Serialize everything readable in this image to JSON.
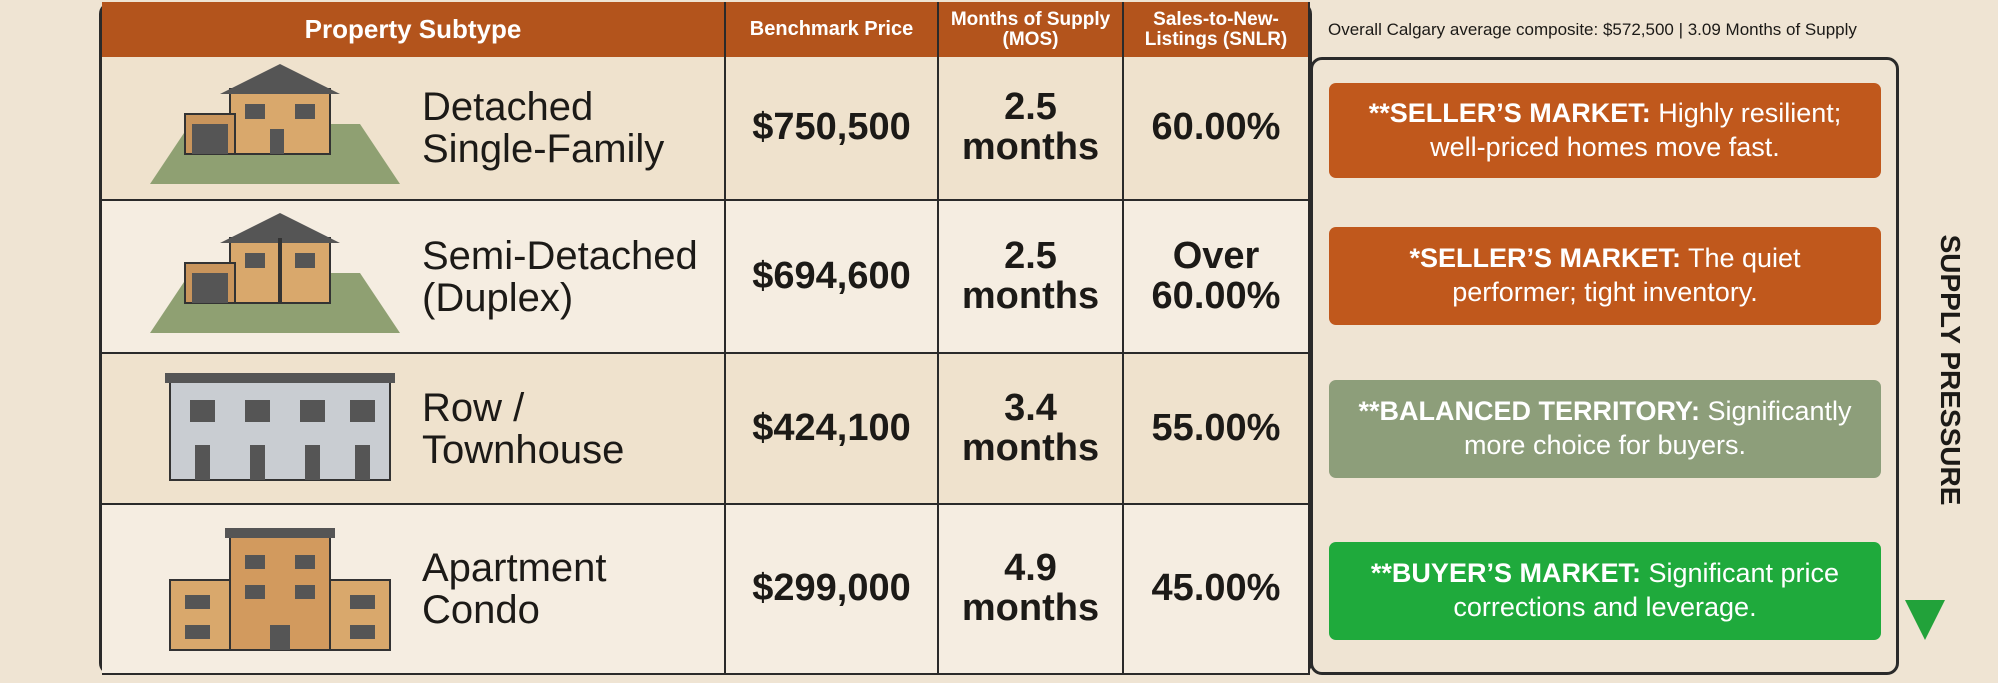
{
  "header": {
    "columns": [
      "Property Subtype",
      "Benchmark Price",
      "Months of Supply (MOS)",
      "Sales-to-New-Listings (SNLR)"
    ],
    "note": "Overall Calgary average composite: $572,500 | 3.09 Months of Supply"
  },
  "rows": [
    {
      "subtype": "Detached Single-Family",
      "price": "$750,500",
      "mos": "2.5 months",
      "snlr": "60.00%",
      "status_label": "**SELLER’S MARKET:",
      "status_text": "Highly resilient; well-priced homes move fast."
    },
    {
      "subtype": "Semi-Detached (Duplex)",
      "price": "$694,600",
      "mos": "2.5 months",
      "snlr": "Over 60.00%",
      "status_label": "*SELLER’S MARKET:",
      "status_text": "The quiet performer; tight inventory."
    },
    {
      "subtype": "Row / Townhouse",
      "price": "$424,100",
      "mos": "3.4 months",
      "snlr": "55.00%",
      "status_label": "**BALANCED TERRITORY:",
      "status_text": "Significantly more choice for buyers."
    },
    {
      "subtype": "Apartment Condo",
      "price": "$299,000",
      "mos": "4.9 months",
      "snlr": "45.00%",
      "status_label": "**BUYER’S MARKET:",
      "status_text": "Significant price corrections and leverage."
    }
  ],
  "side_label": "SUPPLY PRESSURE"
}
